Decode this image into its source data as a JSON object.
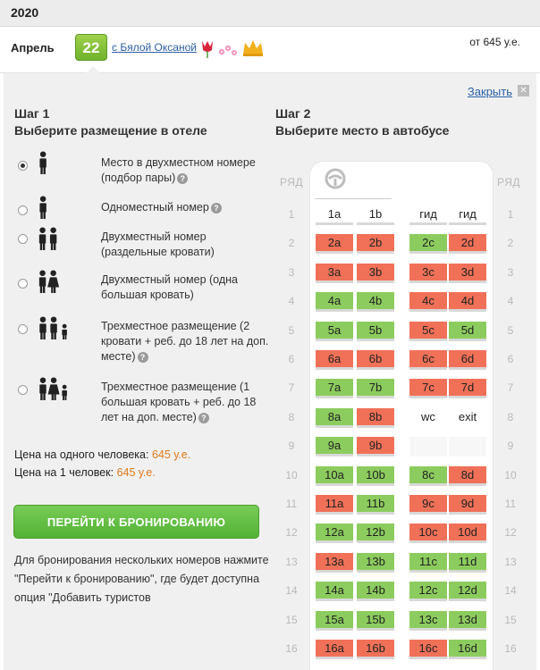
{
  "year": "2020",
  "tour": {
    "month": "Апрель",
    "day": "22",
    "guide_link": "с Бялой Оксаной",
    "price": "от 645 у.е."
  },
  "close_label": "Закрыть",
  "step1": {
    "title_line1": "Шаг 1",
    "title_line2": "Выберите размещение в отеле",
    "options": [
      {
        "label": "Место в двухместном номере (подбор пары)",
        "selected": true
      },
      {
        "label": "Одноместный номер",
        "selected": false
      },
      {
        "label": "Двухместный номер (раздельные кровати)",
        "selected": false
      },
      {
        "label": "Двухместный номер (одна большая кровать)",
        "selected": false
      },
      {
        "label": "Трехместное размещение (2 кровати + реб. до 18 лет на доп. месте)",
        "selected": false
      },
      {
        "label": "Трехместное размещение (1 большая кровать + реб. до 18 лет на доп. месте)",
        "selected": false
      }
    ],
    "price_per_person_label": "Цена на одного человека:",
    "price_per_person_value": "645 у.е.",
    "price_1_label": "Цена на 1 человек:",
    "price_1_value": "645 у.е.",
    "book_button": "ПЕРЕЙТИ К БРОНИРОВАНИЮ",
    "note": "Для бронирования нескольких номеров нажмите \"Перейти к бронированию\", где будет доступна опция \"Добавить туристов"
  },
  "step2": {
    "title_line1": "Шаг 2",
    "title_line2": "Выберите место в автобусе",
    "row_header": "РЯД",
    "rows": [
      {
        "num": "1",
        "seats": [
          {
            "label": "1a",
            "status": "plain"
          },
          {
            "label": "1b",
            "status": "plain"
          },
          {
            "label": "гид",
            "status": "plain"
          },
          {
            "label": "гид",
            "status": "plain"
          }
        ]
      },
      {
        "num": "2",
        "seats": [
          {
            "label": "2a",
            "status": "red"
          },
          {
            "label": "2b",
            "status": "red"
          },
          {
            "label": "2c",
            "status": "green"
          },
          {
            "label": "2d",
            "status": "red"
          }
        ]
      },
      {
        "num": "3",
        "seats": [
          {
            "label": "3a",
            "status": "red"
          },
          {
            "label": "3b",
            "status": "red"
          },
          {
            "label": "3c",
            "status": "red"
          },
          {
            "label": "3d",
            "status": "red"
          }
        ]
      },
      {
        "num": "4",
        "seats": [
          {
            "label": "4a",
            "status": "green"
          },
          {
            "label": "4b",
            "status": "green"
          },
          {
            "label": "4c",
            "status": "red"
          },
          {
            "label": "4d",
            "status": "red"
          }
        ]
      },
      {
        "num": "5",
        "seats": [
          {
            "label": "5a",
            "status": "green"
          },
          {
            "label": "5b",
            "status": "green"
          },
          {
            "label": "5c",
            "status": "red"
          },
          {
            "label": "5d",
            "status": "green"
          }
        ]
      },
      {
        "num": "6",
        "seats": [
          {
            "label": "6a",
            "status": "red"
          },
          {
            "label": "6b",
            "status": "red"
          },
          {
            "label": "6c",
            "status": "red"
          },
          {
            "label": "6d",
            "status": "red"
          }
        ]
      },
      {
        "num": "7",
        "seats": [
          {
            "label": "7a",
            "status": "green"
          },
          {
            "label": "7b",
            "status": "green"
          },
          {
            "label": "7c",
            "status": "red"
          },
          {
            "label": "7d",
            "status": "red"
          }
        ]
      },
      {
        "num": "8",
        "seats": [
          {
            "label": "8a",
            "status": "green"
          },
          {
            "label": "8b",
            "status": "red"
          },
          {
            "label": "wc",
            "status": "textonly"
          },
          {
            "label": "exit",
            "status": "textonly"
          }
        ]
      },
      {
        "num": "9",
        "seats": [
          {
            "label": "9a",
            "status": "green"
          },
          {
            "label": "9b",
            "status": "red"
          },
          {
            "label": "",
            "status": "empty"
          },
          {
            "label": "",
            "status": "empty"
          }
        ]
      },
      {
        "num": "10",
        "seats": [
          {
            "label": "10a",
            "status": "green"
          },
          {
            "label": "10b",
            "status": "green"
          },
          {
            "label": "8c",
            "status": "green"
          },
          {
            "label": "8d",
            "status": "red"
          }
        ]
      },
      {
        "num": "11",
        "seats": [
          {
            "label": "11a",
            "status": "red"
          },
          {
            "label": "11b",
            "status": "green"
          },
          {
            "label": "9c",
            "status": "red"
          },
          {
            "label": "9d",
            "status": "red"
          }
        ]
      },
      {
        "num": "12",
        "seats": [
          {
            "label": "12a",
            "status": "green"
          },
          {
            "label": "12b",
            "status": "green"
          },
          {
            "label": "10c",
            "status": "red"
          },
          {
            "label": "10d",
            "status": "red"
          }
        ]
      },
      {
        "num": "13",
        "seats": [
          {
            "label": "13a",
            "status": "red"
          },
          {
            "label": "13b",
            "status": "green"
          },
          {
            "label": "11c",
            "status": "green"
          },
          {
            "label": "11d",
            "status": "green"
          }
        ]
      },
      {
        "num": "14",
        "seats": [
          {
            "label": "14a",
            "status": "green"
          },
          {
            "label": "14b",
            "status": "green"
          },
          {
            "label": "12c",
            "status": "green"
          },
          {
            "label": "12d",
            "status": "green"
          }
        ]
      },
      {
        "num": "15",
        "seats": [
          {
            "label": "15a",
            "status": "green"
          },
          {
            "label": "15b",
            "status": "green"
          },
          {
            "label": "13c",
            "status": "green"
          },
          {
            "label": "13d",
            "status": "green"
          }
        ]
      },
      {
        "num": "16",
        "seats": [
          {
            "label": "16a",
            "status": "red"
          },
          {
            "label": "16b",
            "status": "red"
          },
          {
            "label": "16c",
            "status": "red"
          },
          {
            "label": "16d",
            "status": "green"
          }
        ]
      }
    ]
  },
  "colors": {
    "green": "#8ccc5e",
    "red": "#f07158",
    "accent": "#e07a1c",
    "link": "#2a5ea8"
  }
}
